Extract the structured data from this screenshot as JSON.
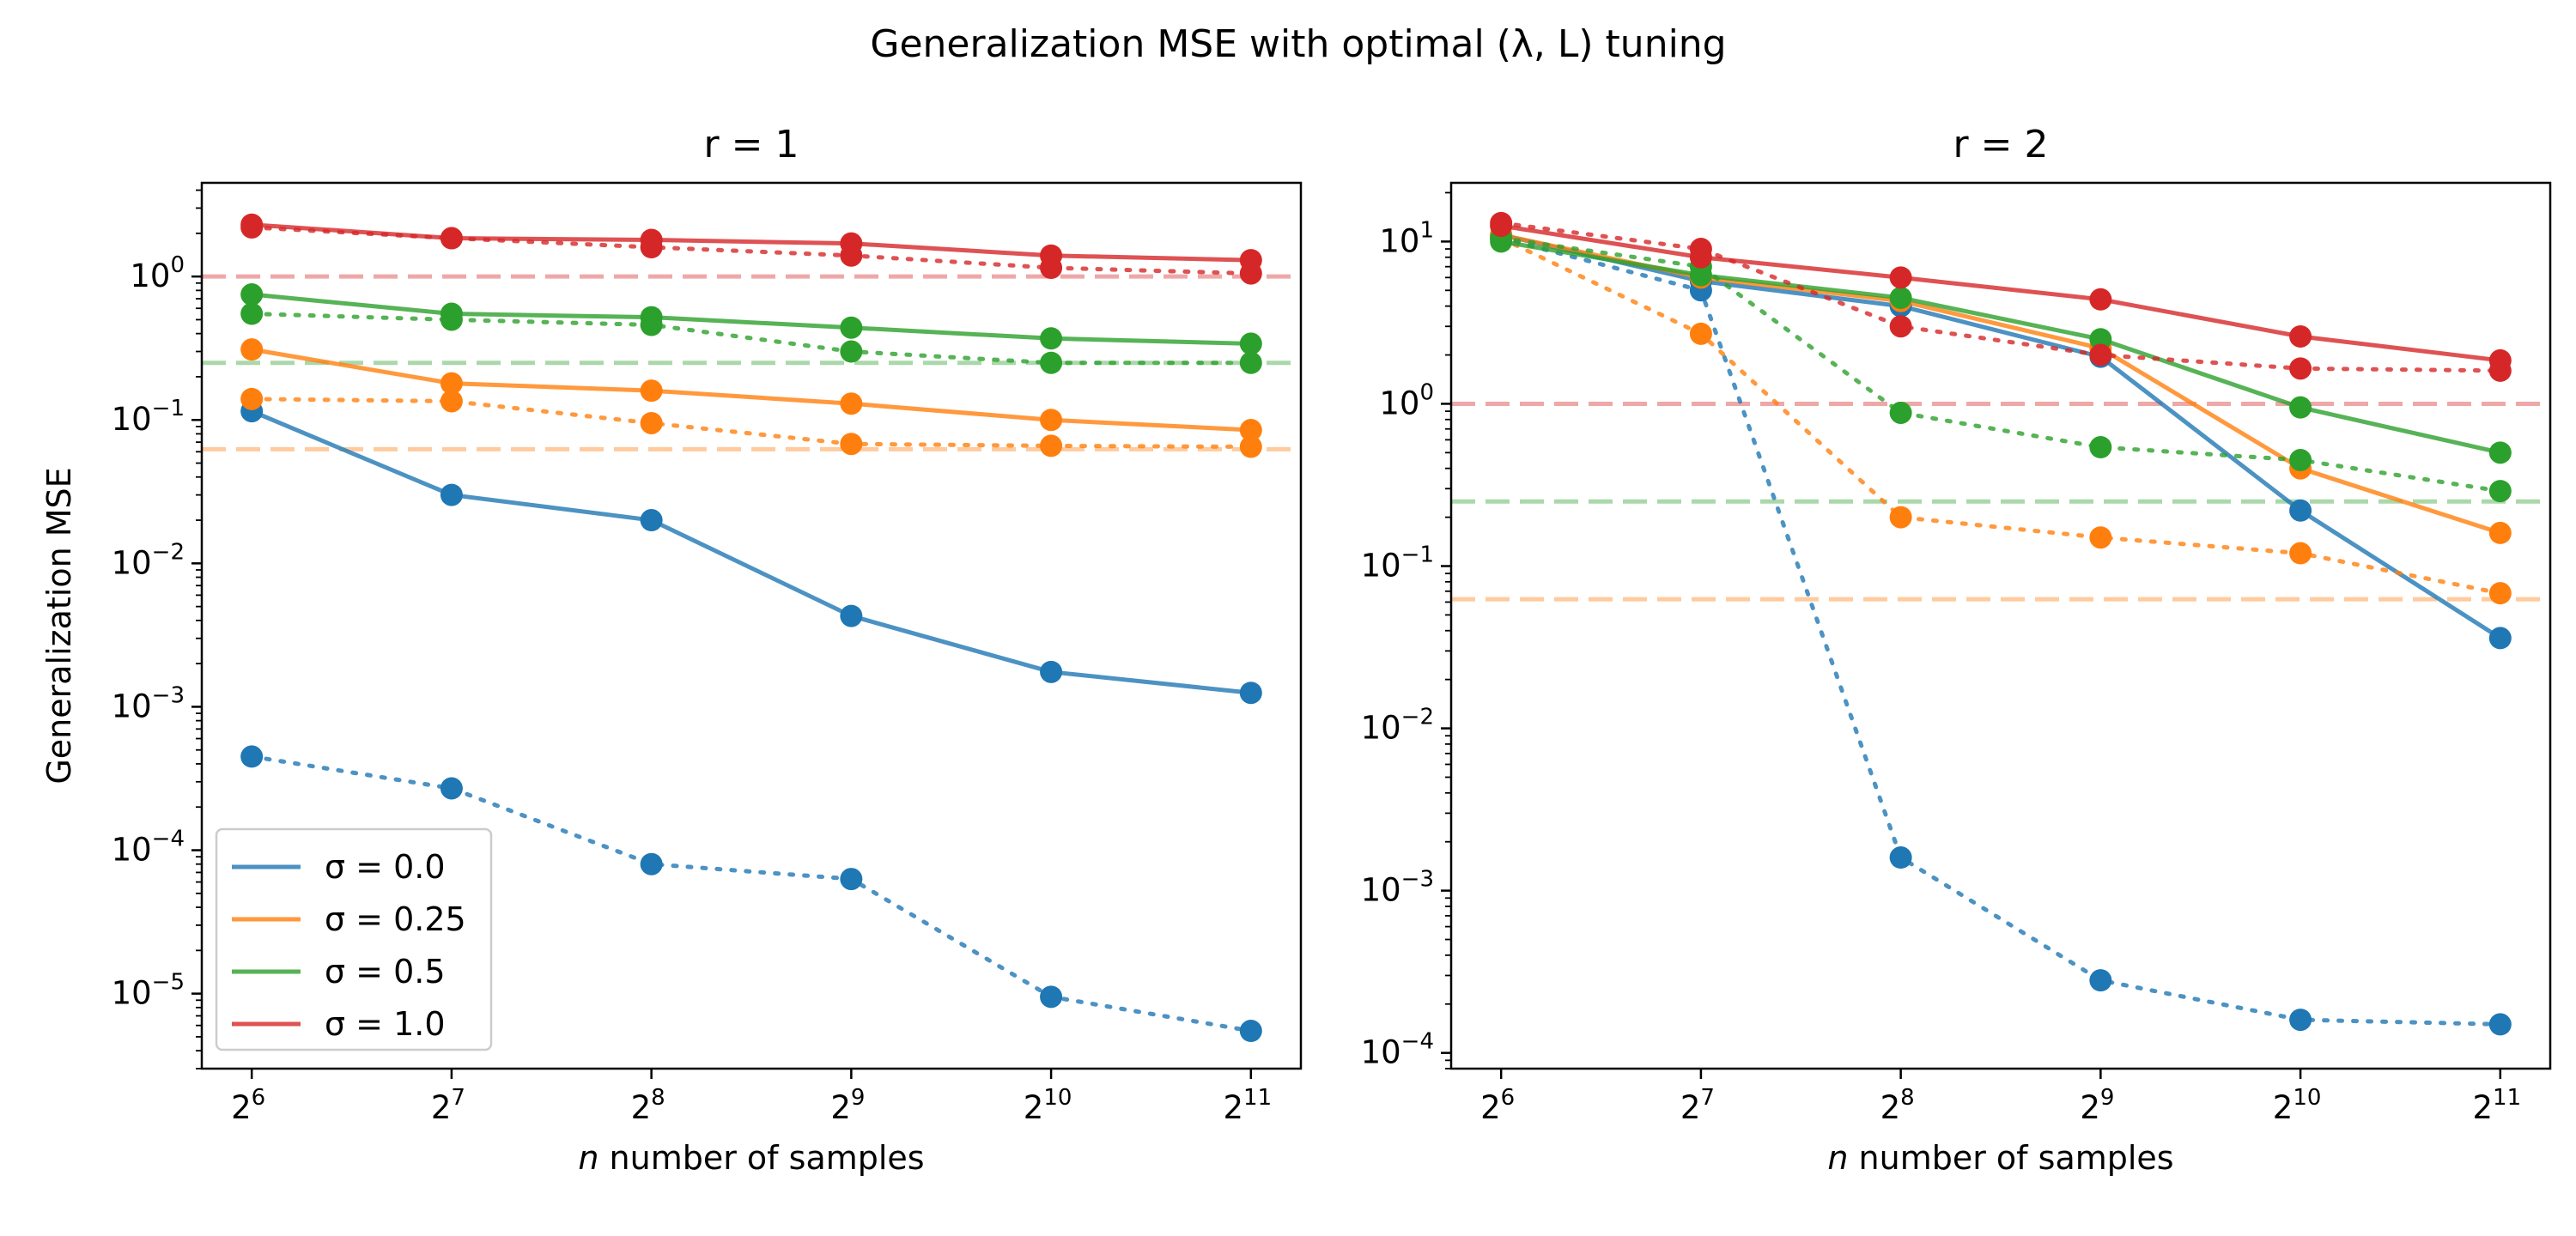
{
  "suptitle": "Generalization MSE with optimal (λ, L) tuning",
  "chart_data": [
    {
      "type": "line",
      "title": "r = 1",
      "xlabel": "n number of samples",
      "ylabel": "Generalization MSE",
      "xscale": "log2",
      "yscale": "log10",
      "x": [
        64,
        128,
        256,
        512,
        1024,
        2048
      ],
      "x_tick_exponents": [
        6,
        7,
        8,
        9,
        10,
        11
      ],
      "y_tick_exponents": [
        -5,
        -4,
        -3,
        -2,
        -1,
        0
      ],
      "ylim": [
        3e-06,
        4.5
      ],
      "legend": {
        "placement": "lower-left",
        "entries": [
          "σ = 0.0",
          "σ = 0.25",
          "σ = 0.5",
          "σ = 1.0"
        ]
      },
      "series": [
        {
          "name": "σ = 0.0",
          "style": "solid",
          "color": "#1f77b4",
          "values": [
            0.115,
            0.03,
            0.02,
            0.0043,
            0.00175,
            0.00125
          ]
        },
        {
          "name": "σ = 0.0",
          "style": "dotted",
          "color": "#1f77b4",
          "values": [
            0.00045,
            0.00027,
            8e-05,
            6.3e-05,
            9.5e-06,
            5.5e-06
          ]
        },
        {
          "name": "σ = 0.25",
          "style": "solid",
          "color": "#ff7f0e",
          "values": [
            0.31,
            0.18,
            0.16,
            0.13,
            0.1,
            0.085
          ]
        },
        {
          "name": "σ = 0.25",
          "style": "dotted",
          "color": "#ff7f0e",
          "values": [
            0.14,
            0.135,
            0.095,
            0.068,
            0.066,
            0.065
          ]
        },
        {
          "name": "σ = 0.5",
          "style": "solid",
          "color": "#2ca02c",
          "values": [
            0.75,
            0.55,
            0.52,
            0.44,
            0.37,
            0.34
          ]
        },
        {
          "name": "σ = 0.5",
          "style": "dotted",
          "color": "#2ca02c",
          "values": [
            0.55,
            0.5,
            0.46,
            0.3,
            0.25,
            0.25
          ]
        },
        {
          "name": "σ = 1.0",
          "style": "solid",
          "color": "#d62728",
          "values": [
            2.3,
            1.85,
            1.8,
            1.7,
            1.4,
            1.3
          ]
        },
        {
          "name": "σ = 1.0",
          "style": "dotted",
          "color": "#d62728",
          "values": [
            2.2,
            1.85,
            1.6,
            1.4,
            1.15,
            1.05
          ]
        }
      ],
      "reference_lines": [
        {
          "y": 1.0,
          "color": "#d62728"
        },
        {
          "y": 0.25,
          "color": "#2ca02c"
        },
        {
          "y": 0.0625,
          "color": "#ff7f0e"
        }
      ]
    },
    {
      "type": "line",
      "title": "r = 2",
      "xlabel": "n number of samples",
      "ylabel": "",
      "xscale": "log2",
      "yscale": "log10",
      "x": [
        64,
        128,
        256,
        512,
        1024,
        2048
      ],
      "x_tick_exponents": [
        6,
        7,
        8,
        9,
        10,
        11
      ],
      "y_tick_exponents": [
        -4,
        -3,
        -2,
        -1,
        0,
        1
      ],
      "ylim": [
        8e-05,
        23
      ],
      "series": [
        {
          "name": "σ = 0.0",
          "style": "solid",
          "color": "#1f77b4",
          "values": [
            11,
            5.7,
            4.0,
            1.95,
            0.22,
            0.036
          ]
        },
        {
          "name": "σ = 0.0",
          "style": "dotted",
          "color": "#1f77b4",
          "values": [
            10.5,
            5.0,
            0.0016,
            0.00028,
            0.00016,
            0.00015
          ]
        },
        {
          "name": "σ = 0.25",
          "style": "solid",
          "color": "#ff7f0e",
          "values": [
            11,
            6.0,
            4.3,
            2.2,
            0.4,
            0.16
          ]
        },
        {
          "name": "σ = 0.25",
          "style": "dotted",
          "color": "#ff7f0e",
          "values": [
            10.5,
            2.7,
            0.2,
            0.15,
            0.12,
            0.068
          ]
        },
        {
          "name": "σ = 0.5",
          "style": "solid",
          "color": "#2ca02c",
          "values": [
            10,
            6.2,
            4.5,
            2.5,
            0.95,
            0.5
          ]
        },
        {
          "name": "σ = 0.5",
          "style": "dotted",
          "color": "#2ca02c",
          "values": [
            10.5,
            7.0,
            0.88,
            0.54,
            0.45,
            0.29
          ]
        },
        {
          "name": "σ = 1.0",
          "style": "solid",
          "color": "#d62728",
          "values": [
            12.5,
            8.0,
            6.0,
            4.4,
            2.6,
            1.85
          ]
        },
        {
          "name": "σ = 1.0",
          "style": "dotted",
          "color": "#d62728",
          "values": [
            13,
            9.0,
            3.0,
            2.0,
            1.65,
            1.6
          ]
        }
      ],
      "reference_lines": [
        {
          "y": 1.0,
          "color": "#d62728"
        },
        {
          "y": 0.25,
          "color": "#2ca02c"
        },
        {
          "y": 0.0625,
          "color": "#ff7f0e"
        }
      ]
    }
  ]
}
